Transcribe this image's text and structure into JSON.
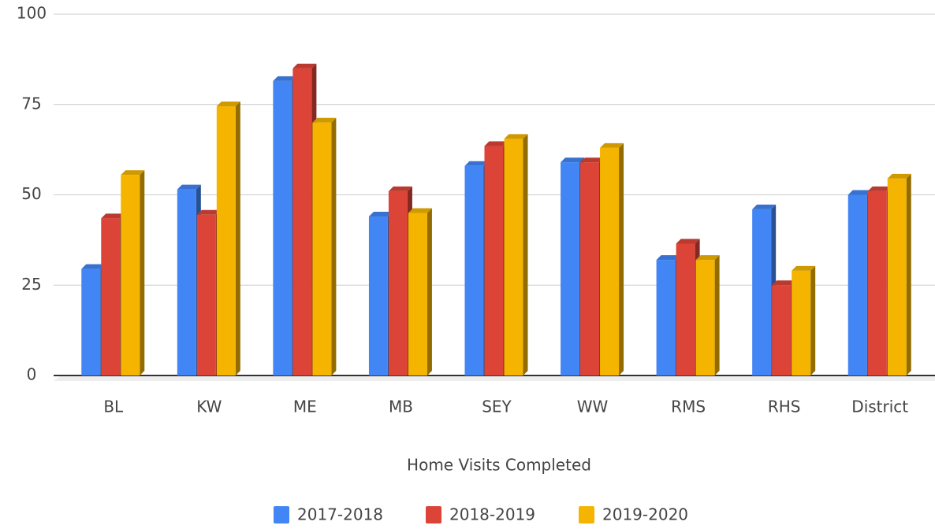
{
  "chart_data": {
    "type": "bar",
    "x_label": "Home Visits Completed",
    "categories": [
      "BL",
      "KW",
      "ME",
      "MB",
      "SEY",
      "WW",
      "RMS",
      "RHS",
      "District"
    ],
    "series": [
      {
        "name": "2017-2018",
        "color": "#4285f4",
        "values": [
          29.5,
          51.5,
          81.5,
          44,
          58,
          59,
          32,
          46,
          50
        ]
      },
      {
        "name": "2018-2019",
        "color": "#db4437",
        "values": [
          43.5,
          44.5,
          85,
          51,
          63.5,
          59,
          36.5,
          25,
          51
        ]
      },
      {
        "name": "2019-2020",
        "color": "#f4b400",
        "values": [
          55.5,
          74.5,
          70,
          45,
          65.5,
          63,
          32,
          29,
          54.5
        ]
      }
    ],
    "ylim": [
      0,
      100
    ],
    "yticks": [
      0,
      25,
      50,
      75,
      100
    ],
    "grid": true,
    "legend": "bottom"
  }
}
